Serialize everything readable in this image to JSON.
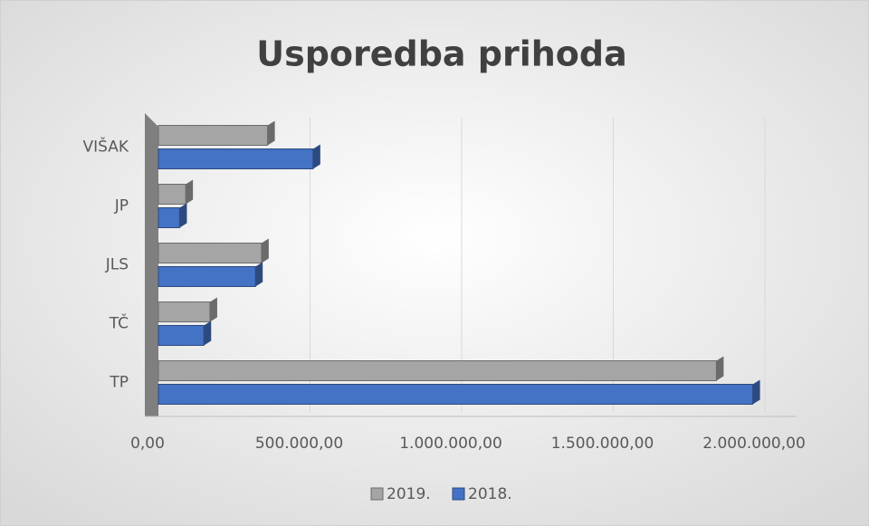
{
  "chart_data": {
    "type": "bar",
    "orientation": "horizontal",
    "title": "Usporedba prihoda",
    "categories": [
      "TP",
      "TČ",
      "JLS",
      "JP",
      "VIŠAK"
    ],
    "series": [
      {
        "name": "2019.",
        "color": "#a5a5a5",
        "values": [
          1840000,
          170000,
          340000,
          90000,
          360000
        ]
      },
      {
        "name": "2018.",
        "color": "#4472c4",
        "values": [
          1960000,
          150000,
          320000,
          70000,
          510000
        ]
      }
    ],
    "xlim": [
      0,
      2000000
    ],
    "xticks": [
      {
        "value": 0,
        "label": "0,00"
      },
      {
        "value": 500000,
        "label": "500.000,00"
      },
      {
        "value": 1000000,
        "label": "1.000.000,00"
      },
      {
        "value": 1500000,
        "label": "1.500.000,00"
      },
      {
        "value": 2000000,
        "label": "2.000.000,00"
      }
    ],
    "grid": true,
    "legend": "bottom"
  }
}
